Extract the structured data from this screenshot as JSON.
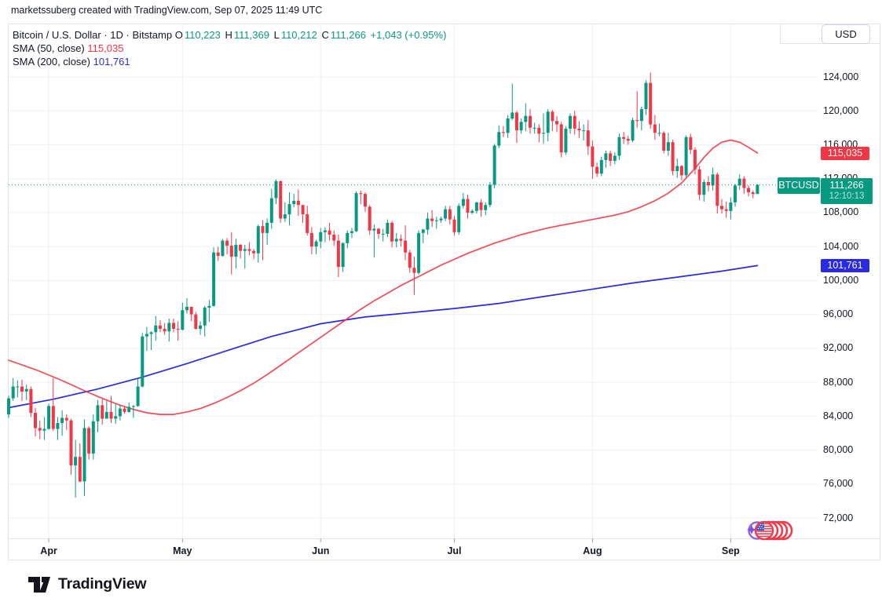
{
  "attribution": "marketssuberg created with TradingView.com, Sep 07, 2025 11:49 UTC",
  "legend": {
    "symbol": {
      "name": "Bitcoin / U.S. Dollar",
      "sep": "·",
      "interval": "1D",
      "exchange": "Bitstamp",
      "ohlc": [
        {
          "label": "O",
          "value": "110,223"
        },
        {
          "label": "H",
          "value": "111,369"
        },
        {
          "label": "L",
          "value": "110,212"
        },
        {
          "label": "C",
          "value": "111,266"
        }
      ],
      "change": "+1,043 (+0.95%)"
    },
    "sma50": {
      "label": "SMA (50, close)",
      "value": "115,035"
    },
    "sma200": {
      "label": "SMA (200, close)",
      "value": "101,761"
    }
  },
  "currency_button": "USD",
  "price_axis": {
    "ticks": [
      "124,000",
      "120,000",
      "116,000",
      "112,000",
      "108,000",
      "104,000",
      "100,000",
      "96,000",
      "92,000",
      "88,000",
      "84,000",
      "80,000",
      "76,000",
      "72,000"
    ]
  },
  "badges": {
    "sma50": {
      "text": "115,035",
      "value": 115035
    },
    "last": {
      "symbol": "BTCUSD",
      "price": "111,266",
      "countdown": "12:10:13",
      "value": 111266
    },
    "sma200": {
      "text": "101,761",
      "value": 101761
    }
  },
  "footer": {
    "brand": "TradingView"
  },
  "chart_data": {
    "type": "candlestick",
    "title": "Bitcoin / U.S. Dollar",
    "symbol": "BTCUSD",
    "exchange": "Bitstamp",
    "interval": "1D",
    "currency": "USD",
    "start_date": "2025-03-23",
    "units": "USD thousands",
    "last_price": 111.266,
    "sma50_last": 115.035,
    "sma200_last": 101.761,
    "ylim": [
      70.5,
      126.5
    ],
    "grid": true,
    "y_ticks": [
      124,
      120,
      116,
      112,
      108,
      104,
      100,
      96,
      92,
      88,
      84,
      80,
      76,
      72
    ],
    "months": [
      {
        "label": "Apr",
        "index": 9
      },
      {
        "label": "May",
        "index": 39
      },
      {
        "label": "Jun",
        "index": 70
      },
      {
        "label": "Jul",
        "index": 100
      },
      {
        "label": "Aug",
        "index": 131
      },
      {
        "label": "Sep",
        "index": 162
      }
    ],
    "candles": [
      [
        84.2,
        86.4,
        83.8,
        86.1
      ],
      [
        86.1,
        88.5,
        85.8,
        87.5
      ],
      [
        87.5,
        88.2,
        86.2,
        87.5
      ],
      [
        87.5,
        88.3,
        85.8,
        86.9
      ],
      [
        86.9,
        87.7,
        85.9,
        87.2
      ],
      [
        87.2,
        87.5,
        83.9,
        84.4
      ],
      [
        84.4,
        85.0,
        81.6,
        82.6
      ],
      [
        82.6,
        83.5,
        81.3,
        82.3
      ],
      [
        82.3,
        83.9,
        81.2,
        82.5
      ],
      [
        82.5,
        85.5,
        82.4,
        85.2
      ],
      [
        85.2,
        88.5,
        82.3,
        82.5
      ],
      [
        82.5,
        83.9,
        81.2,
        83.2
      ],
      [
        83.2,
        84.7,
        81.7,
        83.8
      ],
      [
        83.8,
        84.2,
        82.4,
        83.5
      ],
      [
        83.5,
        83.7,
        77.1,
        78.2
      ],
      [
        78.2,
        81.2,
        74.4,
        79.2
      ],
      [
        79.2,
        80.8,
        76.2,
        76.3
      ],
      [
        76.3,
        83.6,
        74.6,
        82.6
      ],
      [
        82.6,
        82.8,
        78.9,
        79.6
      ],
      [
        79.6,
        84.2,
        78.9,
        83.4
      ],
      [
        83.4,
        85.9,
        82.1,
        85.3
      ],
      [
        85.3,
        86.0,
        83.0,
        83.7
      ],
      [
        83.7,
        85.8,
        83.7,
        84.5
      ],
      [
        84.5,
        86.4,
        83.2,
        83.7
      ],
      [
        83.7,
        85.5,
        83.1,
        84.0
      ],
      [
        84.0,
        85.4,
        83.5,
        84.9
      ],
      [
        84.9,
        85.1,
        84.3,
        84.5
      ],
      [
        84.5,
        85.6,
        84.4,
        85.1
      ],
      [
        85.1,
        85.3,
        83.8,
        85.2
      ],
      [
        85.2,
        88.4,
        85.1,
        87.5
      ],
      [
        87.5,
        93.8,
        87.4,
        93.4
      ],
      [
        93.4,
        94.5,
        91.7,
        93.7
      ],
      [
        93.7,
        94.0,
        91.8,
        93.9
      ],
      [
        93.9,
        95.8,
        92.9,
        94.7
      ],
      [
        94.7,
        95.3,
        93.9,
        94.3
      ],
      [
        94.3,
        95.0,
        93.6,
        94.0
      ],
      [
        94.0,
        95.5,
        92.8,
        95.0
      ],
      [
        95.0,
        95.5,
        93.9,
        94.3
      ],
      [
        94.3,
        95.2,
        92.9,
        94.2
      ],
      [
        94.2,
        97.4,
        94.1,
        96.5
      ],
      [
        96.5,
        97.9,
        96.1,
        96.9
      ],
      [
        96.9,
        96.9,
        95.2,
        96.0
      ],
      [
        96.0,
        96.3,
        94.2,
        94.3
      ],
      [
        94.3,
        95.2,
        93.6,
        94.7
      ],
      [
        94.7,
        97.0,
        93.4,
        96.8
      ],
      [
        96.8,
        97.7,
        95.1,
        97.0
      ],
      [
        97.0,
        103.9,
        96.9,
        103.3
      ],
      [
        103.3,
        104.0,
        102.3,
        102.9
      ],
      [
        102.9,
        104.9,
        102.8,
        104.7
      ],
      [
        104.7,
        105.0,
        103.1,
        104.1
      ],
      [
        104.1,
        105.7,
        100.7,
        102.8
      ],
      [
        102.8,
        104.9,
        101.4,
        104.2
      ],
      [
        104.2,
        104.3,
        102.6,
        103.5
      ],
      [
        103.5,
        104.2,
        101.4,
        103.7
      ],
      [
        103.7,
        104.5,
        103.0,
        103.5
      ],
      [
        103.5,
        103.7,
        102.5,
        103.2
      ],
      [
        103.2,
        106.6,
        102.1,
        106.4
      ],
      [
        106.4,
        107.1,
        102.4,
        105.6
      ],
      [
        105.6,
        107.3,
        104.2,
        106.8
      ],
      [
        106.8,
        110.8,
        106.1,
        109.7
      ],
      [
        109.7,
        111.9,
        109.0,
        111.7
      ],
      [
        111.7,
        111.8,
        106.8,
        107.3
      ],
      [
        107.3,
        109.2,
        106.9,
        107.8
      ],
      [
        107.8,
        110.4,
        106.5,
        109.0
      ],
      [
        109.0,
        110.2,
        108.6,
        109.4
      ],
      [
        109.4,
        110.7,
        107.6,
        108.9
      ],
      [
        108.9,
        108.9,
        106.8,
        107.8
      ],
      [
        107.8,
        108.8,
        105.3,
        105.6
      ],
      [
        105.6,
        106.3,
        103.1,
        104.0
      ],
      [
        104.0,
        104.8,
        103.1,
        104.6
      ],
      [
        104.6,
        106.2,
        103.8,
        105.7
      ],
      [
        105.7,
        106.3,
        104.5,
        105.9
      ],
      [
        105.9,
        106.8,
        104.7,
        105.4
      ],
      [
        105.4,
        105.9,
        104.1,
        104.7
      ],
      [
        104.7,
        105.4,
        100.4,
        101.6
      ],
      [
        101.6,
        104.5,
        101.0,
        104.4
      ],
      [
        104.4,
        105.9,
        103.8,
        105.6
      ],
      [
        105.6,
        106.2,
        105.0,
        105.8
      ],
      [
        105.8,
        110.5,
        105.7,
        110.3
      ],
      [
        110.3,
        110.6,
        109.0,
        110.2
      ],
      [
        110.2,
        110.4,
        108.1,
        108.7
      ],
      [
        108.7,
        108.9,
        105.4,
        105.9
      ],
      [
        105.9,
        106.6,
        102.7,
        106.1
      ],
      [
        106.1,
        106.2,
        104.9,
        105.5
      ],
      [
        105.5,
        106.1,
        104.6,
        105.5
      ],
      [
        105.5,
        107.2,
        105.1,
        106.8
      ],
      [
        106.8,
        107.0,
        103.9,
        104.6
      ],
      [
        104.6,
        105.6,
        103.9,
        104.9
      ],
      [
        104.9,
        105.4,
        104.0,
        104.7
      ],
      [
        104.7,
        106.5,
        102.4,
        103.3
      ],
      [
        103.3,
        103.6,
        100.9,
        101.5
      ],
      [
        101.5,
        102.8,
        98.3,
        100.9
      ],
      [
        100.9,
        105.9,
        100.7,
        105.6
      ],
      [
        105.6,
        106.1,
        104.4,
        106.0
      ],
      [
        106.0,
        108.0,
        105.4,
        107.3
      ],
      [
        107.3,
        108.3,
        106.3,
        107.0
      ],
      [
        107.0,
        107.5,
        106.1,
        107.1
      ],
      [
        107.1,
        107.5,
        106.8,
        107.3
      ],
      [
        107.3,
        108.8,
        107.0,
        108.4
      ],
      [
        108.4,
        108.8,
        106.6,
        107.2
      ],
      [
        107.2,
        107.6,
        105.3,
        105.7
      ],
      [
        105.7,
        109.1,
        105.4,
        108.8
      ],
      [
        108.8,
        110.3,
        108.5,
        109.6
      ],
      [
        109.6,
        110.1,
        107.3,
        108.0
      ],
      [
        108.0,
        108.4,
        107.8,
        108.2
      ],
      [
        108.2,
        109.3,
        107.9,
        109.2
      ],
      [
        109.2,
        109.6,
        107.5,
        108.3
      ],
      [
        108.3,
        109.2,
        107.7,
        108.9
      ],
      [
        108.9,
        111.6,
        108.6,
        111.3
      ],
      [
        111.3,
        116.1,
        110.9,
        115.9
      ],
      [
        115.9,
        118.3,
        115.6,
        117.5
      ],
      [
        117.5,
        118.2,
        116.9,
        117.4
      ],
      [
        117.4,
        119.5,
        116.8,
        119.1
      ],
      [
        119.1,
        123.2,
        118.9,
        119.8
      ],
      [
        119.8,
        120.0,
        116.2,
        117.7
      ],
      [
        117.7,
        119.1,
        117.3,
        118.7
      ],
      [
        118.7,
        120.9,
        117.6,
        119.4
      ],
      [
        119.4,
        120.2,
        117.3,
        118.0
      ],
      [
        118.0,
        118.6,
        117.3,
        118.0
      ],
      [
        118.0,
        118.4,
        116.3,
        117.3
      ],
      [
        117.3,
        119.7,
        116.1,
        117.4
      ],
      [
        117.4,
        120.2,
        116.4,
        119.9
      ],
      [
        119.9,
        120.1,
        117.6,
        118.8
      ],
      [
        118.8,
        119.4,
        117.5,
        118.4
      ],
      [
        118.4,
        118.7,
        114.5,
        115.1
      ],
      [
        115.1,
        118.2,
        114.8,
        117.9
      ],
      [
        117.9,
        119.7,
        117.3,
        119.4
      ],
      [
        119.4,
        120.0,
        117.2,
        117.9
      ],
      [
        117.9,
        118.8,
        116.8,
        117.7
      ],
      [
        117.7,
        118.4,
        116.5,
        117.7
      ],
      [
        117.7,
        118.9,
        114.8,
        115.8
      ],
      [
        115.8,
        116.5,
        112.0,
        113.4
      ],
      [
        113.4,
        113.9,
        112.2,
        112.6
      ],
      [
        112.6,
        114.6,
        112.3,
        114.2
      ],
      [
        114.2,
        115.3,
        113.3,
        115.0
      ],
      [
        115.0,
        115.3,
        113.5,
        114.1
      ],
      [
        114.1,
        115.1,
        113.7,
        114.7
      ],
      [
        114.7,
        117.3,
        114.2,
        116.9
      ],
      [
        116.9,
        117.5,
        116.1,
        116.7
      ],
      [
        116.7,
        117.1,
        116.0,
        116.5
      ],
      [
        116.5,
        119.2,
        116.3,
        118.9
      ],
      [
        118.9,
        122.3,
        118.0,
        118.8
      ],
      [
        118.8,
        120.5,
        117.7,
        120.2
      ],
      [
        120.2,
        123.6,
        119.5,
        123.3
      ],
      [
        123.3,
        124.5,
        117.9,
        118.4
      ],
      [
        118.4,
        119.5,
        116.6,
        117.4
      ],
      [
        117.4,
        118.5,
        117.0,
        117.4
      ],
      [
        117.4,
        117.6,
        115.0,
        115.3
      ],
      [
        115.3,
        117.4,
        114.7,
        116.3
      ],
      [
        116.3,
        116.6,
        112.4,
        112.9
      ],
      [
        112.9,
        114.4,
        112.1,
        113.5
      ],
      [
        113.5,
        113.6,
        111.8,
        112.4
      ],
      [
        112.4,
        117.1,
        112.2,
        116.9
      ],
      [
        116.9,
        117.3,
        114.9,
        115.4
      ],
      [
        115.4,
        115.7,
        112.5,
        113.1
      ],
      [
        113.1,
        113.5,
        109.5,
        110.1
      ],
      [
        110.1,
        111.9,
        109.3,
        111.6
      ],
      [
        111.6,
        112.3,
        110.5,
        111.2
      ],
      [
        111.2,
        113.3,
        110.6,
        112.5
      ],
      [
        112.5,
        112.7,
        107.9,
        108.8
      ],
      [
        108.8,
        109.6,
        107.9,
        108.4
      ],
      [
        108.4,
        109.3,
        107.4,
        108.2
      ],
      [
        108.2,
        109.8,
        107.2,
        109.2
      ],
      [
        109.2,
        111.4,
        108.7,
        111.2
      ],
      [
        111.2,
        112.5,
        110.7,
        112.0
      ],
      [
        112.0,
        112.3,
        110.2,
        110.9
      ],
      [
        110.9,
        111.2,
        109.9,
        110.4
      ],
      [
        110.4,
        110.6,
        109.7,
        110.2
      ],
      [
        110.2,
        111.37,
        110.21,
        111.27
      ]
    ],
    "sma50_points": [
      [
        0,
        90.6
      ],
      [
        6,
        89.5
      ],
      [
        12,
        88.2
      ],
      [
        17,
        87.0
      ],
      [
        21,
        86.1
      ],
      [
        25,
        85.3
      ],
      [
        28,
        84.8
      ],
      [
        31,
        84.4
      ],
      [
        34,
        84.2
      ],
      [
        37,
        84.2
      ],
      [
        40,
        84.5
      ],
      [
        43,
        84.9
      ],
      [
        46,
        85.5
      ],
      [
        49,
        86.2
      ],
      [
        52,
        87.0
      ],
      [
        55,
        87.9
      ],
      [
        58,
        88.9
      ],
      [
        61,
        90.0
      ],
      [
        64,
        91.1
      ],
      [
        67,
        92.2
      ],
      [
        70,
        93.3
      ],
      [
        73,
        94.4
      ],
      [
        76,
        95.5
      ],
      [
        79,
        96.6
      ],
      [
        82,
        97.6
      ],
      [
        85,
        98.5
      ],
      [
        88,
        99.4
      ],
      [
        91,
        100.2
      ],
      [
        94,
        101.0
      ],
      [
        97,
        101.8
      ],
      [
        100,
        102.5
      ],
      [
        103,
        103.2
      ],
      [
        106,
        103.8
      ],
      [
        109,
        104.4
      ],
      [
        112,
        104.9
      ],
      [
        115,
        105.4
      ],
      [
        118,
        105.8
      ],
      [
        121,
        106.2
      ],
      [
        124,
        106.5
      ],
      [
        127,
        106.8
      ],
      [
        130,
        107.1
      ],
      [
        133,
        107.4
      ],
      [
        136,
        107.7
      ],
      [
        139,
        108.1
      ],
      [
        142,
        108.7
      ],
      [
        145,
        109.4
      ],
      [
        148,
        110.3
      ],
      [
        151,
        111.5
      ],
      [
        154,
        113.2
      ],
      [
        156,
        114.5
      ],
      [
        158,
        115.6
      ],
      [
        160,
        116.3
      ],
      [
        162,
        116.55
      ],
      [
        164,
        116.3
      ],
      [
        166,
        115.7
      ],
      [
        168,
        115.035
      ]
    ],
    "sma200_points": [
      [
        0,
        85.0
      ],
      [
        10,
        86.0
      ],
      [
        20,
        87.2
      ],
      [
        30,
        88.6
      ],
      [
        40,
        90.2
      ],
      [
        50,
        91.9
      ],
      [
        59,
        93.4
      ],
      [
        70,
        94.9
      ],
      [
        80,
        95.7
      ],
      [
        90,
        96.2
      ],
      [
        100,
        96.7
      ],
      [
        110,
        97.3
      ],
      [
        120,
        98.1
      ],
      [
        130,
        98.9
      ],
      [
        140,
        99.7
      ],
      [
        150,
        100.4
      ],
      [
        160,
        101.1
      ],
      [
        168,
        101.761
      ]
    ],
    "colors": {
      "up": "#089981",
      "down": "#f23645",
      "sma50": "#f23645",
      "sma200": "#2a2ae4",
      "last_line": "#089981",
      "grid": "#eef0f4",
      "border": "#e0e3eb",
      "axis_tick": "#9598a1",
      "text": "#131722"
    }
  }
}
